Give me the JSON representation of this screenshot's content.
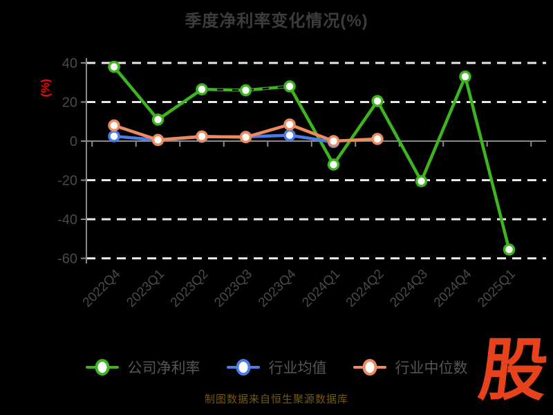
{
  "chart_data": {
    "type": "line",
    "title": "季度净利率变化情况(%)",
    "ylabel": "(%)",
    "xlabel": "",
    "categories": [
      "2022Q4",
      "2023Q1",
      "2023Q2",
      "2023Q3",
      "2023Q4",
      "2024Q1",
      "2024Q2",
      "2024Q3",
      "2024Q4",
      "2025Q1"
    ],
    "series": [
      {
        "name": "公司净利率",
        "color": "#3CB51E",
        "values": [
          38,
          11,
          26.5,
          26,
          28,
          -12,
          20.5,
          -20.5,
          33,
          -55.5
        ]
      },
      {
        "name": "行业均值",
        "color": "#4A7EE6",
        "values": [
          2.5,
          0.5,
          2.2,
          2.2,
          3,
          -0.5,
          null,
          null,
          null,
          null
        ]
      },
      {
        "name": "行业中位数",
        "color": "#EF8A5E",
        "values": [
          8,
          0.6,
          2.4,
          2,
          8.5,
          0,
          1.1,
          null,
          null,
          null
        ]
      }
    ],
    "y_ticks": [
      40,
      20,
      0,
      -20,
      -40,
      -60
    ],
    "ylim": [
      -62,
      44
    ],
    "grid": "horizontal-dashed",
    "legend_position": "bottom"
  },
  "footer": {
    "caption": "制图数据来自恒生聚源数据库",
    "logo_text": "股"
  },
  "colors": {
    "background": "#000000",
    "grid": "#E8E8E8",
    "axis": "#8A8A8A",
    "tick_label": "#4A4A4A",
    "title": "#3C3C3C",
    "legend_label": "#565656",
    "ylabel": "#FF0000",
    "caption": "#75590E",
    "logo": "#E8421C",
    "marker_fill": "#FFFFFF"
  }
}
